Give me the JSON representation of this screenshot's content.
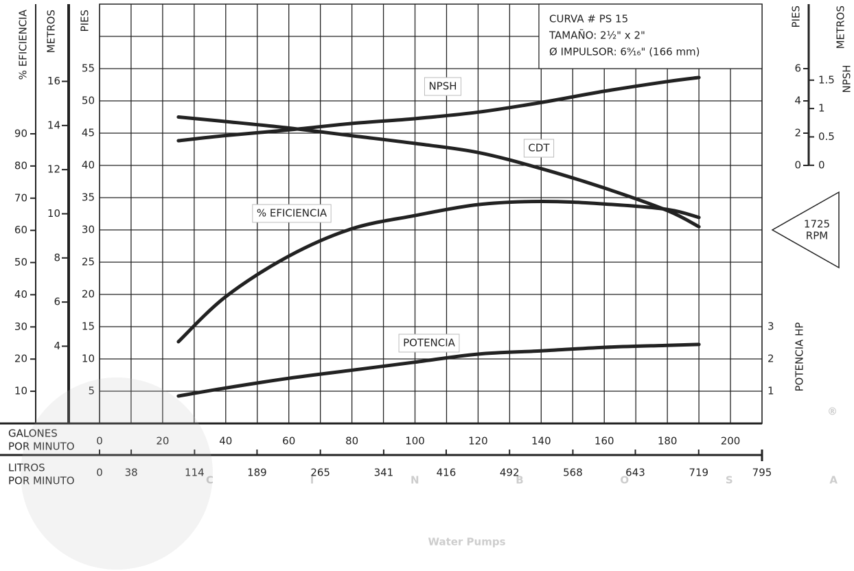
{
  "chart_data": {
    "type": "line",
    "info": [
      "CURVA # PS 15",
      "TAMAÑO: 2½\" x 2\"",
      "Ø IMPULSOR: 6⁹⁄₁₆\" (166 mm)"
    ],
    "rpm": [
      "1725",
      "RPM"
    ],
    "watermark": [
      "CINBOSA",
      "®",
      "Water Pumps"
    ],
    "x_label": [
      "GALONES",
      "POR MINUTO"
    ],
    "xlim": [
      0,
      210
    ],
    "xticks": [
      0,
      20,
      40,
      60,
      80,
      100,
      120,
      140,
      160,
      180,
      200
    ],
    "xminorticks": [
      10,
      30,
      50,
      70,
      90,
      110,
      130,
      150,
      170,
      190,
      210
    ],
    "x2_label": [
      "LITROS",
      "POR MINUTO"
    ],
    "x2lim": [
      0,
      795
    ],
    "x2ticks": [
      0,
      38,
      114,
      189,
      265,
      341,
      416,
      492,
      568,
      643,
      719,
      795
    ],
    "y_label": "PIES",
    "ylim": [
      0,
      65
    ],
    "yticks": [
      5,
      10,
      15,
      20,
      25,
      30,
      35,
      40,
      45,
      50,
      55
    ],
    "yminorticks": [
      0,
      60
    ],
    "grid": true,
    "axes": {
      "eficiencia": {
        "label": "% EFICIENCIA",
        "lim": [
          0,
          130.3
        ],
        "ticks": [
          10,
          20,
          30,
          40,
          50,
          60,
          70,
          80,
          90
        ]
      },
      "metros": {
        "label": "METROS",
        "lim": [
          0.5,
          19.5
        ],
        "ticks": [
          4,
          6,
          8,
          10,
          12,
          14,
          16
        ]
      },
      "npsh_pies": {
        "label": "PIES",
        "lim": [
          -16,
          10
        ],
        "ticks": [
          0,
          2,
          4,
          6
        ]
      },
      "npsh_metros": {
        "label": "METROS",
        "lim": [
          -4.55,
          2.84
        ],
        "ticks": [
          0,
          0.5,
          1,
          1.5
        ]
      },
      "potencia": {
        "label": "POTENCIA HP",
        "lim": [
          0,
          13
        ],
        "ticks": [
          1,
          2,
          3
        ]
      }
    },
    "npsh_label": "NPSH",
    "x": [
      25,
      40,
      60,
      80,
      100,
      120,
      140,
      160,
      180,
      190
    ],
    "series": [
      {
        "name": "NPSH",
        "color": "#222222",
        "axis": "npsh_pies",
        "values": [
          1.53,
          1.85,
          2.2,
          2.6,
          2.9,
          3.3,
          3.9,
          4.6,
          5.2,
          5.45
        ]
      },
      {
        "name": "CDT",
        "color": "#222222",
        "axis": "y",
        "values": [
          47.5,
          46.8,
          45.8,
          44.6,
          43.4,
          42,
          39.5,
          36.5,
          33,
          30.5
        ]
      },
      {
        "name": "% EFICIENCIA",
        "color": "#222222",
        "axis": "eficiencia",
        "values": [
          25.4,
          39.4,
          52,
          60.5,
          64.6,
          68,
          69,
          68.2,
          66.5,
          64
        ]
      },
      {
        "name": "POTENCIA",
        "color": "#222222",
        "axis": "potencia",
        "values": [
          0.85,
          1.1,
          1.4,
          1.65,
          1.9,
          2.15,
          2.25,
          2.36,
          2.42,
          2.45
        ]
      }
    ]
  }
}
